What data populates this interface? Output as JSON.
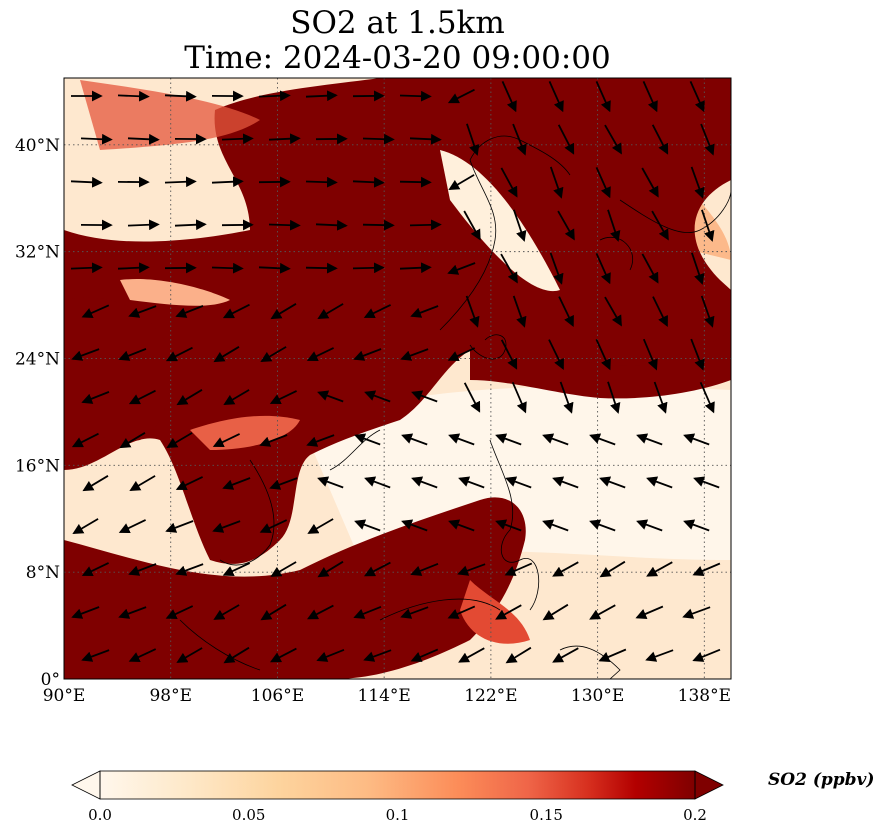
{
  "title": {
    "line1": "SO2 at 1.5km",
    "line2": "Time: 2024-03-20 09:00:00"
  },
  "map": {
    "lon_range": [
      90,
      140
    ],
    "lat_range": [
      0,
      45
    ],
    "lon_ticks": [
      "90°E",
      "98°E",
      "106°E",
      "114°E",
      "122°E",
      "130°E",
      "138°E"
    ],
    "lat_ticks": [
      "0°",
      "8°N",
      "16°N",
      "24°N",
      "32°N",
      "40°N"
    ],
    "gridlines": "dotted",
    "field_colors": {
      "low": "#fff5eb",
      "mid": "#f6a26a",
      "high": "#7f0000"
    }
  },
  "colorbar": {
    "label": "SO2 (ppbv)",
    "ticks": [
      "0.0",
      "0.05",
      "0.1",
      "0.15",
      "0.2"
    ],
    "range": [
      0.0,
      0.2
    ],
    "colormap": "OrRd",
    "extend": "both"
  }
}
